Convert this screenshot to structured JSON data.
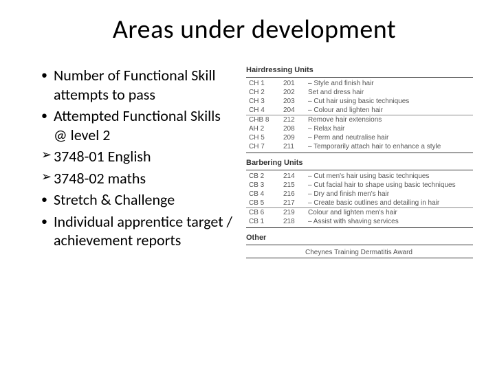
{
  "title": "Areas under development",
  "bullets": [
    {
      "marker": "•",
      "text": "Number of Functional Skill attempts to pass"
    },
    {
      "marker": "•",
      "text": "Attempted Functional Skills @ level 2"
    },
    {
      "marker": "➢",
      "text": "3748-01 English"
    },
    {
      "marker": "➢",
      "text": "3748-02 maths"
    },
    {
      "marker": "•",
      "text": "Stretch & Challenge"
    },
    {
      "marker": "•",
      "text": "Individual apprentice target / achievement reports"
    }
  ],
  "sections": [
    {
      "heading": "Hairdressing Units",
      "groups": [
        [
          {
            "code": "CH 1",
            "num": "201",
            "desc": "– Style and finish hair"
          },
          {
            "code": "CH 2",
            "num": "202",
            "desc": "Set and dress hair"
          },
          {
            "code": "CH 3",
            "num": "203",
            "desc": "– Cut hair using basic techniques"
          },
          {
            "code": "CH 4",
            "num": "204",
            "desc": "– Colour and lighten hair"
          }
        ],
        [
          {
            "code": "CHB 8",
            "num": "212",
            "desc": "Remove hair extensions"
          },
          {
            "code": "AH 2",
            "num": "208",
            "desc": "– Relax hair"
          },
          {
            "code": "CH 5",
            "num": "209",
            "desc": "– Perm and neutralise hair"
          },
          {
            "code": "CH 7",
            "num": "211",
            "desc": "– Temporarily attach hair to enhance a style"
          }
        ]
      ]
    },
    {
      "heading": "Barbering Units",
      "groups": [
        [
          {
            "code": "CB 2",
            "num": "214",
            "desc": "– Cut men's hair using basic techniques"
          },
          {
            "code": "CB 3",
            "num": "215",
            "desc": "– Cut facial hair to shape using basic techniques"
          },
          {
            "code": "CB 4",
            "num": "216",
            "desc": "– Dry and finish men's hair"
          },
          {
            "code": "CB 5",
            "num": "217",
            "desc": "– Create basic outlines and detailing in hair"
          }
        ],
        [
          {
            "code": "CB 6",
            "num": "219",
            "desc": "Colour and lighten men's hair"
          },
          {
            "code": "CB 1",
            "num": "218",
            "desc": "– Assist with shaving services"
          }
        ]
      ]
    }
  ],
  "other_heading": "Other",
  "other_text": "Cheynes Training Dermatitis Award"
}
